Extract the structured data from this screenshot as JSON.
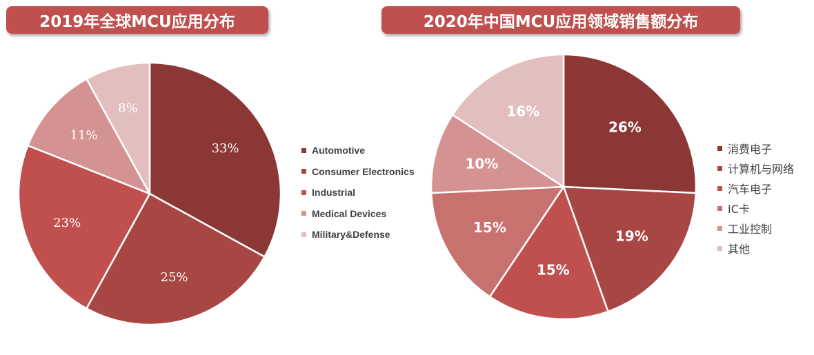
{
  "chart_data": [
    {
      "type": "pie",
      "title": "2019年全球MCU应用分布",
      "categories": [
        "Automotive",
        "Consumer Electronics",
        "Industrial",
        "Medical Devices",
        "Military&Defense"
      ],
      "values": [
        33,
        25,
        23,
        11,
        8
      ],
      "labels": [
        "33%",
        "25%",
        "23%",
        "11%",
        "8%"
      ],
      "colors": [
        "#8b3735",
        "#a84644",
        "#c0504d",
        "#d49392",
        "#e2bfbe"
      ],
      "legend": "right"
    },
    {
      "type": "pie",
      "title": "2020年中国MCU应用领域销售额分布",
      "categories": [
        "消费电子",
        "计算机与网络",
        "汽车电子",
        "IC卡",
        "工业控制",
        "其他"
      ],
      "values": [
        26,
        19,
        15,
        15,
        10,
        16
      ],
      "labels": [
        "26%",
        "19%",
        "15%",
        "15%",
        "10%",
        "16%"
      ],
      "colors": [
        "#8b3735",
        "#a84644",
        "#c0504d",
        "#c87270",
        "#d49392",
        "#e2bfbe"
      ],
      "legend": "right"
    }
  ]
}
